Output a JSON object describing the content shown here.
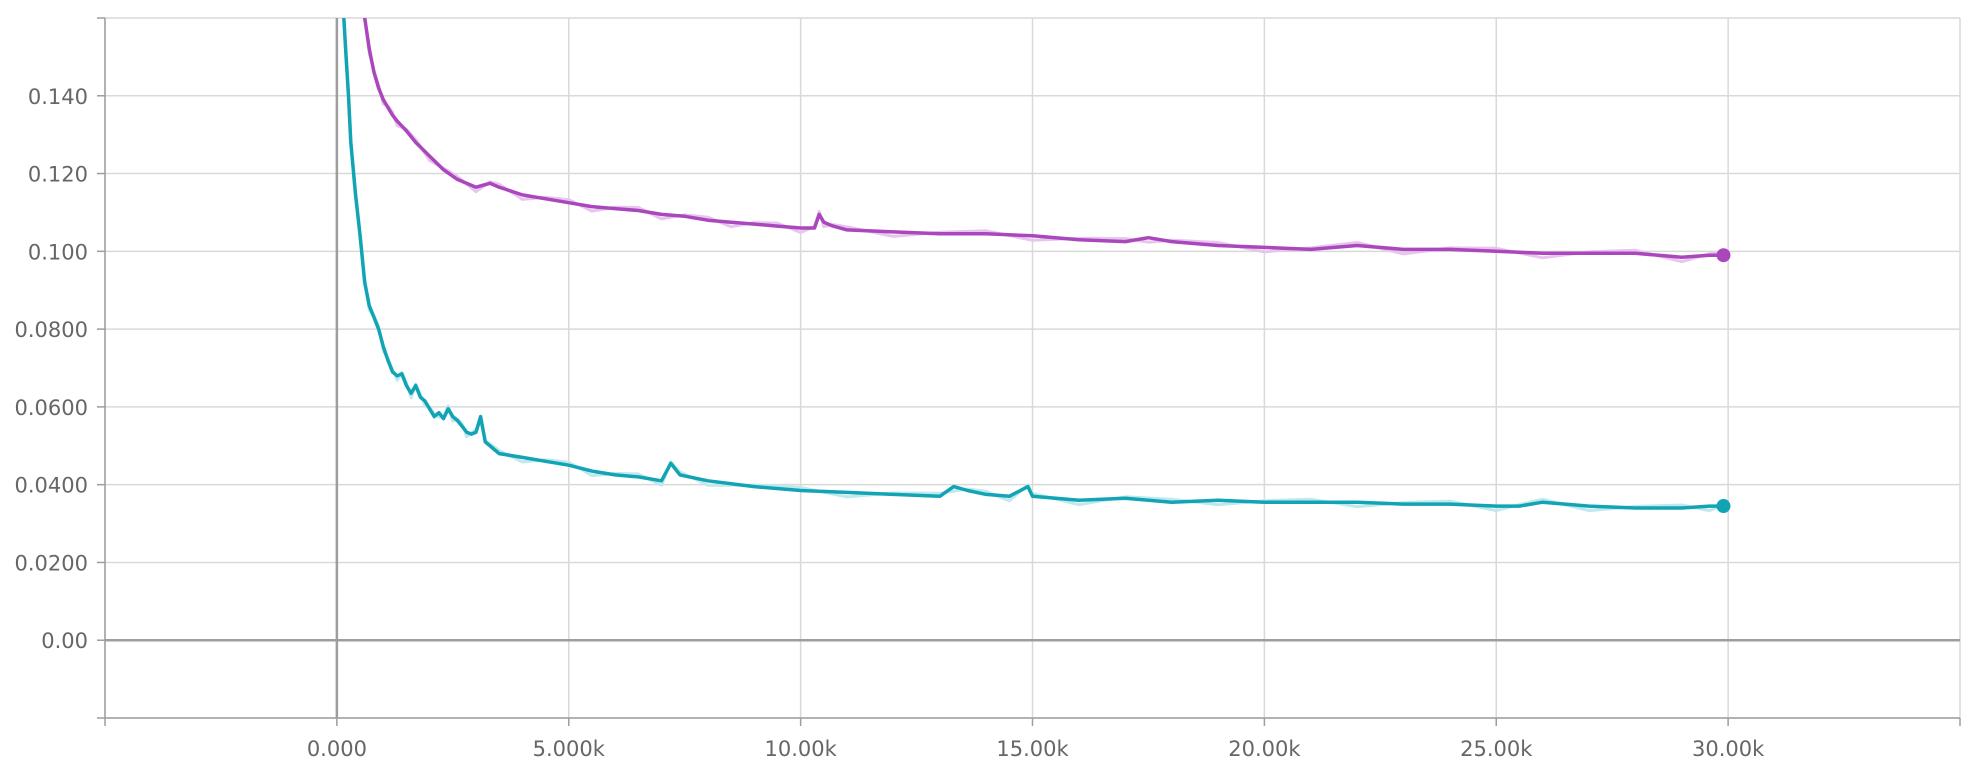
{
  "chart_data": {
    "type": "line",
    "title": "",
    "xlabel": "",
    "ylabel": "",
    "xlim": [
      -5000,
      35000
    ],
    "ylim": [
      -0.02,
      0.16
    ],
    "grid": true,
    "legend": "none",
    "x_ticks": [
      {
        "value": 0,
        "label": "0.000"
      },
      {
        "value": 5000,
        "label": "5.000k"
      },
      {
        "value": 10000,
        "label": "10.00k"
      },
      {
        "value": 15000,
        "label": "15.00k"
      },
      {
        "value": 20000,
        "label": "20.00k"
      },
      {
        "value": 25000,
        "label": "25.00k"
      },
      {
        "value": 30000,
        "label": "30.00k"
      }
    ],
    "y_ticks": [
      {
        "value": 0.14,
        "label": "0.140"
      },
      {
        "value": 0.12,
        "label": "0.120"
      },
      {
        "value": 0.1,
        "label": "0.100"
      },
      {
        "value": 0.08,
        "label": "0.0800"
      },
      {
        "value": 0.06,
        "label": "0.0600"
      },
      {
        "value": 0.04,
        "label": "0.0400"
      },
      {
        "value": 0.02,
        "label": "0.0200"
      },
      {
        "value": 0.0,
        "label": "0.00"
      }
    ],
    "series": [
      {
        "color": "#ab47bc",
        "raw_color": "#e8c5ef",
        "x": [
          600,
          700,
          800,
          900,
          1000,
          1100,
          1200,
          1300,
          1500,
          1700,
          2000,
          2300,
          2600,
          3000,
          3300,
          3500,
          4000,
          4500,
          5000,
          5500,
          6000,
          6500,
          7000,
          7500,
          8000,
          8500,
          9000,
          9500,
          10000,
          10300,
          10400,
          10500,
          10700,
          11000,
          12000,
          13000,
          14000,
          15000,
          16000,
          17000,
          17500,
          18000,
          19000,
          20000,
          21000,
          22000,
          23000,
          24000,
          25000,
          26000,
          27000,
          28000,
          29000,
          29600,
          29900
        ],
        "y": [
          0.16,
          0.152,
          0.146,
          0.142,
          0.139,
          0.137,
          0.135,
          0.1335,
          0.131,
          0.128,
          0.1245,
          0.121,
          0.1185,
          0.1165,
          0.1175,
          0.1165,
          0.1145,
          0.1135,
          0.1125,
          0.1115,
          0.111,
          0.1105,
          0.1095,
          0.109,
          0.108,
          0.1075,
          0.107,
          0.1065,
          0.106,
          0.106,
          0.1095,
          0.1075,
          0.1065,
          0.1055,
          0.105,
          0.1045,
          0.1045,
          0.104,
          0.103,
          0.1025,
          0.1035,
          0.1025,
          0.1015,
          0.101,
          0.1005,
          0.1015,
          0.1005,
          0.1005,
          0.1,
          0.0995,
          0.0995,
          0.0995,
          0.0985,
          0.099,
          0.099
        ]
      },
      {
        "color": "#12a4b4",
        "raw_color": "#bfe9ee",
        "x": [
          150,
          200,
          250,
          300,
          400,
          500,
          600,
          700,
          800,
          900,
          1000,
          1100,
          1200,
          1300,
          1400,
          1500,
          1600,
          1700,
          1800,
          1900,
          2000,
          2100,
          2200,
          2300,
          2400,
          2500,
          2600,
          2700,
          2800,
          2900,
          3000,
          3100,
          3200,
          3500,
          4000,
          4500,
          5000,
          5500,
          6000,
          6500,
          7000,
          7200,
          7400,
          8000,
          9000,
          10000,
          11000,
          12000,
          13000,
          13300,
          13600,
          14000,
          14500,
          14900,
          15000,
          16000,
          17000,
          18000,
          19000,
          20000,
          21000,
          22000,
          23000,
          24000,
          25000,
          25500,
          26000,
          27000,
          28000,
          29000,
          29600,
          29900
        ],
        "y": [
          0.16,
          0.15,
          0.14,
          0.128,
          0.115,
          0.104,
          0.092,
          0.086,
          0.083,
          0.08,
          0.0755,
          0.072,
          0.069,
          0.068,
          0.0685,
          0.0655,
          0.0635,
          0.0655,
          0.0625,
          0.0615,
          0.0595,
          0.0575,
          0.0585,
          0.057,
          0.0595,
          0.0575,
          0.0565,
          0.055,
          0.0535,
          0.053,
          0.0535,
          0.0575,
          0.051,
          0.048,
          0.047,
          0.046,
          0.045,
          0.0435,
          0.0425,
          0.042,
          0.041,
          0.0455,
          0.0425,
          0.041,
          0.0395,
          0.0385,
          0.038,
          0.0375,
          0.037,
          0.0395,
          0.0385,
          0.0375,
          0.037,
          0.0395,
          0.037,
          0.036,
          0.0365,
          0.0355,
          0.036,
          0.0355,
          0.0355,
          0.0355,
          0.035,
          0.035,
          0.0345,
          0.0345,
          0.0355,
          0.0345,
          0.034,
          0.034,
          0.0345,
          0.0345
        ]
      }
    ]
  }
}
